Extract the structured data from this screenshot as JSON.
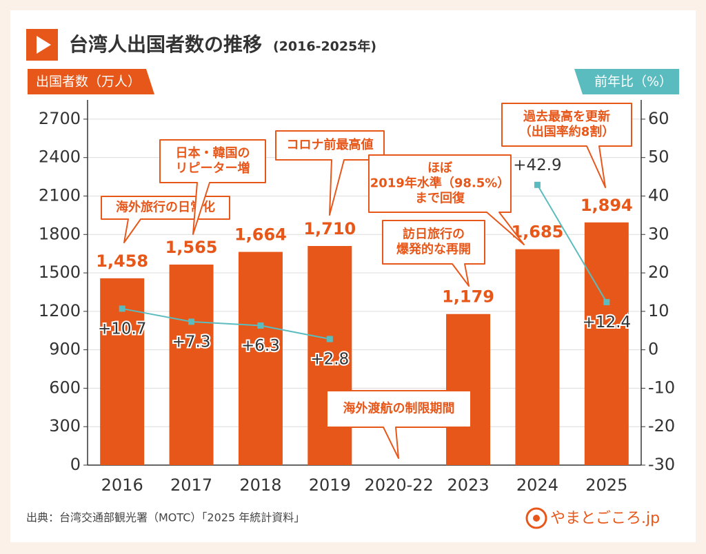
{
  "chart_data": {
    "type": "bar",
    "title": "台湾人出国者数の推移",
    "subtitle": "(2016-2025年)",
    "ylabel": "出国者数（万人）",
    "y2label": "前年比（%）",
    "categories": [
      "2016",
      "2017",
      "2018",
      "2019",
      "2020-22",
      "2023",
      "2024",
      "2025"
    ],
    "series": [
      {
        "type": "bar",
        "color": "#e8571a",
        "values": [
          1458,
          1565,
          1664,
          1710,
          null,
          1179,
          1685,
          1894
        ],
        "value_labels": [
          "1,458",
          "1,565",
          "1,664",
          "1,710",
          null,
          "1,179",
          "1,685",
          "1,894"
        ]
      },
      {
        "type": "line",
        "color": "#5bbcbf",
        "axis": "y2",
        "values": [
          10.7,
          7.3,
          6.3,
          2.8,
          null,
          null,
          42.9,
          12.4
        ],
        "value_labels": [
          "+10.7",
          "+7.3",
          "+6.3",
          "+2.8",
          null,
          null,
          "+42.9",
          "+12.4"
        ]
      }
    ],
    "ylim": [
      0,
      2850
    ],
    "yticks": [
      0,
      300,
      600,
      900,
      1200,
      1500,
      1800,
      2100,
      2400,
      2700
    ],
    "y2lim": [
      -30,
      65
    ],
    "y2ticks": [
      -30,
      -20,
      -10,
      0,
      10,
      20,
      30,
      40,
      50,
      60
    ],
    "grid": true,
    "annotations": [
      {
        "lines": [
          "海外旅行の日常化"
        ]
      },
      {
        "lines": [
          "日本・韓国の",
          "リピーター増"
        ]
      },
      {
        "lines": [
          "コロナ前最高値"
        ]
      },
      {
        "lines": [
          "ほぼ",
          "2019年水準（98.5%）",
          "まで回復"
        ]
      },
      {
        "lines": [
          "訪日旅行の",
          "爆発的な再開"
        ]
      },
      {
        "lines": [
          "過去最高を更新",
          "（出国率約8割）"
        ]
      },
      {
        "lines": [
          "海外渡航の制限期間"
        ]
      }
    ],
    "source": "出典：台湾交通部観光署（MOTC）「2025 年統計資料」",
    "brand": "やまとごころ.jp"
  }
}
